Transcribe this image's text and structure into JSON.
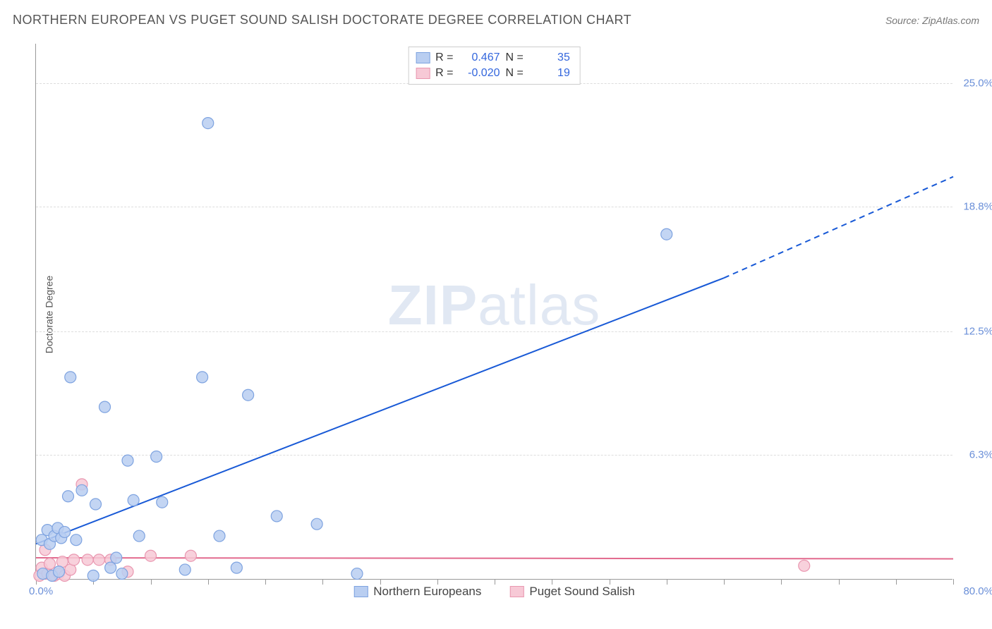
{
  "header": {
    "title": "NORTHERN EUROPEAN VS PUGET SOUND SALISH DOCTORATE DEGREE CORRELATION CHART",
    "source_label": "Source: ZipAtlas.com"
  },
  "chart": {
    "type": "scatter",
    "y_axis_label": "Doctorate Degree",
    "xlim": [
      0,
      80
    ],
    "ylim": [
      0,
      27
    ],
    "x_origin_label": "0.0%",
    "x_max_label": "80.0%",
    "y_ticks": [
      {
        "value": 6.3,
        "label": "6.3%"
      },
      {
        "value": 12.5,
        "label": "12.5%"
      },
      {
        "value": 18.8,
        "label": "18.8%"
      },
      {
        "value": 25.0,
        "label": "25.0%"
      }
    ],
    "x_tick_positions": [
      0,
      5,
      10,
      15,
      20,
      25,
      30,
      35,
      40,
      45,
      50,
      55,
      60,
      65,
      70,
      75,
      80
    ],
    "watermark": "ZIPatlas",
    "background_color": "#ffffff",
    "grid_color": "#dddddd",
    "axis_color": "#999999",
    "tick_label_color": "#6a8fd8",
    "marker_radius": 8,
    "marker_stroke_width": 1.2,
    "series": [
      {
        "id": "northern_europeans",
        "name": "Northern Europeans",
        "fill": "#b9cef1",
        "stroke": "#7ea3e0",
        "line_color": "#1859d6",
        "R": "0.467",
        "N": "35",
        "points": [
          [
            0.5,
            2.0
          ],
          [
            0.6,
            0.3
          ],
          [
            1.0,
            2.5
          ],
          [
            1.2,
            1.8
          ],
          [
            1.4,
            0.2
          ],
          [
            1.6,
            2.2
          ],
          [
            1.9,
            2.6
          ],
          [
            2.0,
            0.4
          ],
          [
            2.2,
            2.1
          ],
          [
            2.5,
            2.4
          ],
          [
            2.8,
            4.2
          ],
          [
            3.0,
            10.2
          ],
          [
            3.5,
            2.0
          ],
          [
            4.0,
            4.5
          ],
          [
            5.0,
            0.2
          ],
          [
            5.2,
            3.8
          ],
          [
            6.0,
            8.7
          ],
          [
            6.5,
            0.6
          ],
          [
            7.0,
            1.1
          ],
          [
            7.5,
            0.3
          ],
          [
            8.0,
            6.0
          ],
          [
            8.5,
            4.0
          ],
          [
            9.0,
            2.2
          ],
          [
            10.5,
            6.2
          ],
          [
            11.0,
            3.9
          ],
          [
            13.0,
            0.5
          ],
          [
            14.5,
            10.2
          ],
          [
            15.0,
            23.0
          ],
          [
            16.0,
            2.2
          ],
          [
            17.5,
            0.6
          ],
          [
            18.5,
            9.3
          ],
          [
            21.0,
            3.2
          ],
          [
            24.5,
            2.8
          ],
          [
            28.0,
            0.3
          ],
          [
            55.0,
            17.4
          ]
        ],
        "trend": {
          "x1": 0,
          "y1": 1.8,
          "x2": 60,
          "y2": 15.2,
          "dash_x2": 80,
          "dash_y2": 20.3
        }
      },
      {
        "id": "puget_sound_salish",
        "name": "Puget Sound Salish",
        "fill": "#f7c9d6",
        "stroke": "#e997b0",
        "line_color": "#e26a8e",
        "R": "-0.020",
        "N": "19",
        "points": [
          [
            0.3,
            0.2
          ],
          [
            0.5,
            0.6
          ],
          [
            0.8,
            1.5
          ],
          [
            1.0,
            0.3
          ],
          [
            1.2,
            0.8
          ],
          [
            1.6,
            0.2
          ],
          [
            2.0,
            0.3
          ],
          [
            2.3,
            0.9
          ],
          [
            2.5,
            0.2
          ],
          [
            3.0,
            0.5
          ],
          [
            3.3,
            1.0
          ],
          [
            4.0,
            4.8
          ],
          [
            4.5,
            1.0
          ],
          [
            5.5,
            1.0
          ],
          [
            6.5,
            1.0
          ],
          [
            8.0,
            0.4
          ],
          [
            10.0,
            1.2
          ],
          [
            13.5,
            1.2
          ],
          [
            67.0,
            0.7
          ]
        ],
        "trend": {
          "x1": 0,
          "y1": 1.1,
          "x2": 80,
          "y2": 1.05
        }
      }
    ]
  },
  "legend_top": {
    "r_label": "R =",
    "n_label": "N ="
  }
}
